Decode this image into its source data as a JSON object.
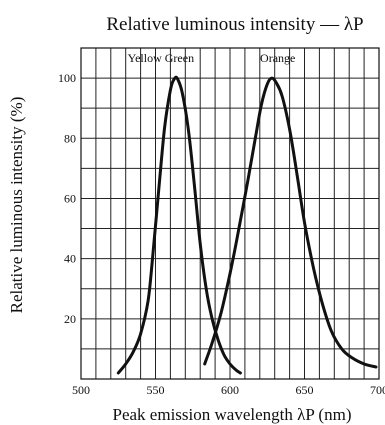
{
  "chart_data": {
    "type": "line",
    "title": "Relative luminous intensity — λP",
    "xlabel": "Peak emission wavelength λP (nm)",
    "ylabel": "Relative luminous intensity (%)",
    "xlim": [
      500,
      700
    ],
    "ylim": [
      0,
      110
    ],
    "xticks": [
      "500",
      "550",
      "600",
      "650",
      "700"
    ],
    "yticks": [
      "20",
      "40",
      "60",
      "80",
      "100"
    ],
    "grid": true,
    "series": [
      {
        "name": "Yellow Green",
        "x": [
          525,
          530,
          535,
          540,
          545,
          548,
          552,
          556,
          560,
          563,
          565,
          568,
          572,
          576,
          580,
          584,
          588,
          592,
          596,
          600,
          604,
          607
        ],
        "y": [
          2,
          5,
          9,
          15,
          26,
          40,
          62,
          83,
          96,
          100,
          99.5,
          95,
          83,
          65,
          45,
          30,
          20,
          13,
          8,
          5,
          3,
          2
        ]
      },
      {
        "name": "Orange",
        "x": [
          583,
          588,
          594,
          600,
          606,
          612,
          617,
          621,
          625,
          628,
          631,
          635,
          640,
          645,
          650,
          656,
          662,
          668,
          675,
          682,
          690,
          698
        ],
        "y": [
          5,
          12,
          22,
          35,
          50,
          66,
          80,
          91,
          98,
          100,
          98.5,
          94,
          83,
          68,
          52,
          37,
          25,
          16,
          10,
          7,
          5,
          4
        ]
      }
    ]
  }
}
